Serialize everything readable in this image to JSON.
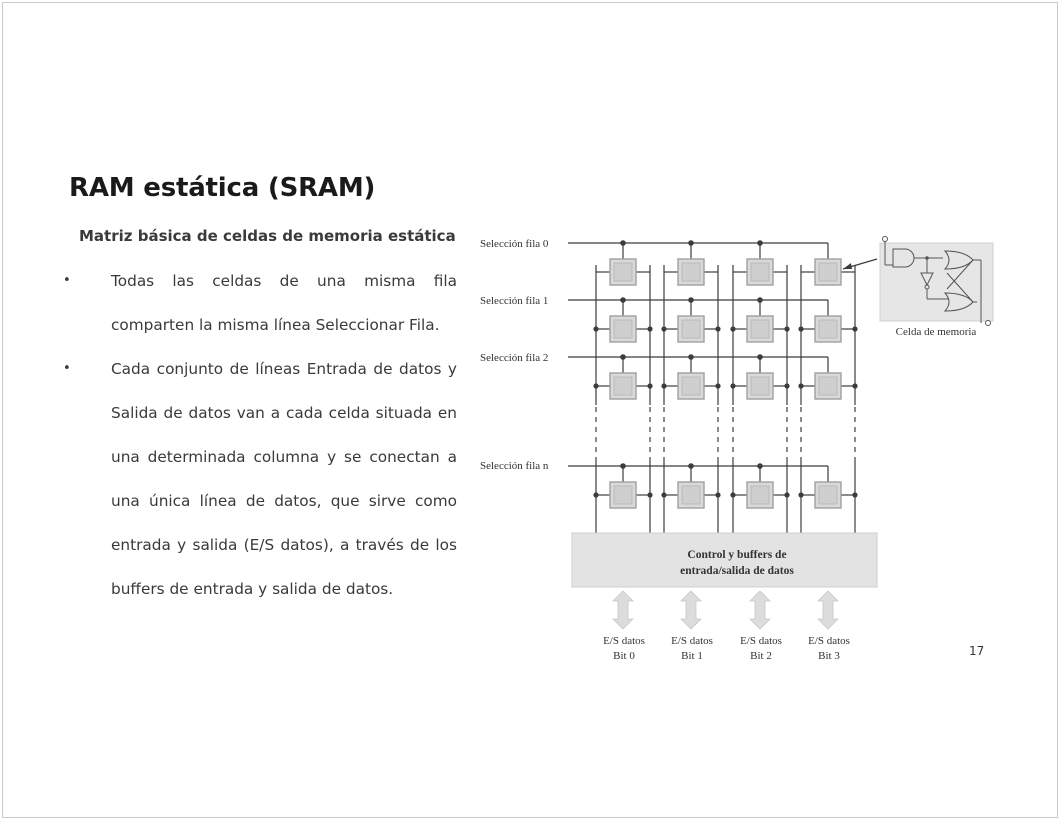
{
  "slide": {
    "title": "RAM estática (SRAM)",
    "subtitle": "Matriz básica de celdas de memoria estática",
    "bullets": [
      "Todas las celdas de una misma fila comparten la misma línea Seleccionar Fila.",
      "Cada conjunto de líneas Entrada de datos y Salida de datos van a cada celda situada en una determinada columna y se conectan a una única línea de datos, que sirve como entrada y salida (E/S datos), a través de los buffers de entrada y salida de datos."
    ],
    "bullet_symbol": "•",
    "page_number": "17"
  },
  "diagram": {
    "row_labels": [
      "Selección fila 0",
      "Selección fila 1",
      "Selección fila 2",
      "Selección fila n"
    ],
    "control_block": [
      "Control y buffers de",
      "entrada/salida de datos"
    ],
    "io_labels": [
      {
        "line1": "E/S datos",
        "line2": "Bit 0"
      },
      {
        "line1": "E/S datos",
        "line2": "Bit 1"
      },
      {
        "line1": "E/S datos",
        "line2": "Bit 2"
      },
      {
        "line1": "E/S datos",
        "line2": "Bit 3"
      }
    ],
    "cell_caption": "Celda de memoria",
    "colors": {
      "line": "#3c3c3c",
      "cell_fill": "#d9d9d9",
      "cell_border": "#a0a0a0",
      "block_fill": "#e3e3e3",
      "arrow_fill": "#dcdcdc"
    }
  }
}
